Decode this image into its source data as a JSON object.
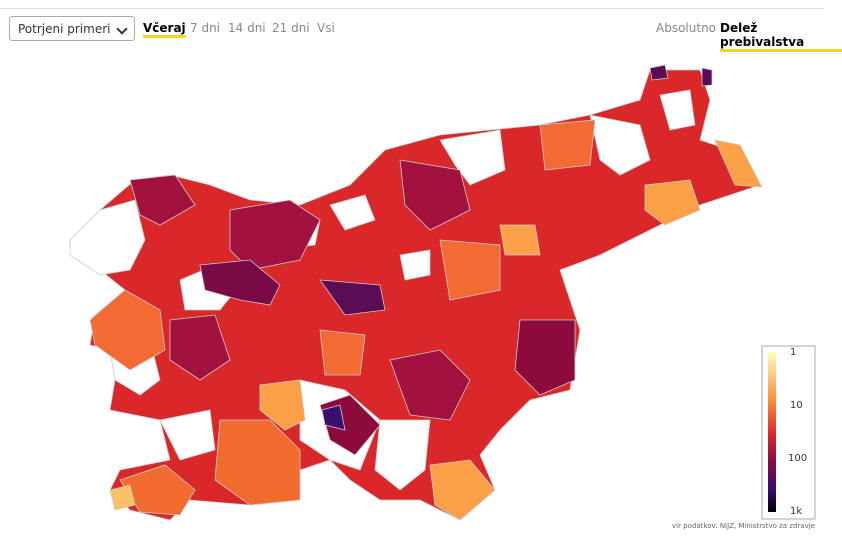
{
  "controls": {
    "select": "Potrjeni primeri",
    "tabs": [
      "Včeraj",
      "7 dni",
      "14 dni",
      "21 dni",
      "Vsi"
    ],
    "toggles": [
      "Absolutno",
      "Delež prebivalstva"
    ]
  },
  "legend": {
    "ticks": [
      "1",
      "10",
      "100",
      "1k"
    ]
  },
  "source": "vir podatkov: NIJZ, Ministrstvo za zdravje"
}
